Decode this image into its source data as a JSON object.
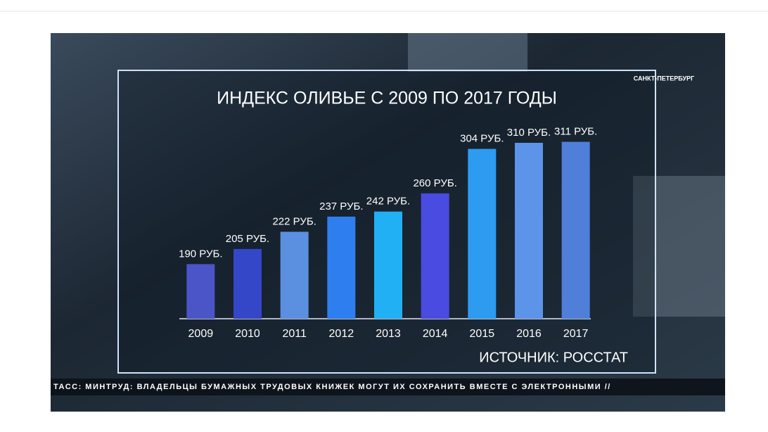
{
  "chart_data": {
    "type": "bar",
    "title": "ИНДЕКС ОЛИВЬЕ С 2009 ПО 2017 ГОДЫ",
    "categories": [
      "2009",
      "2010",
      "2011",
      "2012",
      "2013",
      "2014",
      "2015",
      "2016",
      "2017"
    ],
    "values": [
      190,
      205,
      222,
      237,
      242,
      260,
      304,
      310,
      311
    ],
    "value_labels": [
      "190 РУБ.",
      "205 РУБ.",
      "222 РУБ.",
      "237 РУБ.",
      "242 РУБ.",
      "260 РУБ.",
      "304 РУБ.",
      "310 РУБ.",
      "311 РУБ."
    ],
    "colors": [
      "#4b55c8",
      "#3447c8",
      "#5b8fe0",
      "#2f7ef0",
      "#22b0f5",
      "#4a4be0",
      "#2d9cf0",
      "#5b94e8",
      "#4f7fd8"
    ],
    "ylim": [
      136,
      326
    ],
    "source": "ИСТОЧНИК: РОССТАТ",
    "logo": "САНКТ-ПЕТЕРБУРГ",
    "ticker": "ТАСС: МИНТРУД: ВЛАДЕЛЬЦЫ БУМАЖНЫХ ТРУДОВЫХ КНИЖЕК МОГУТ ИХ СОХРАНИТЬ ВМЕСТЕ С ЭЛЕКТРОННЫМИ //"
  }
}
